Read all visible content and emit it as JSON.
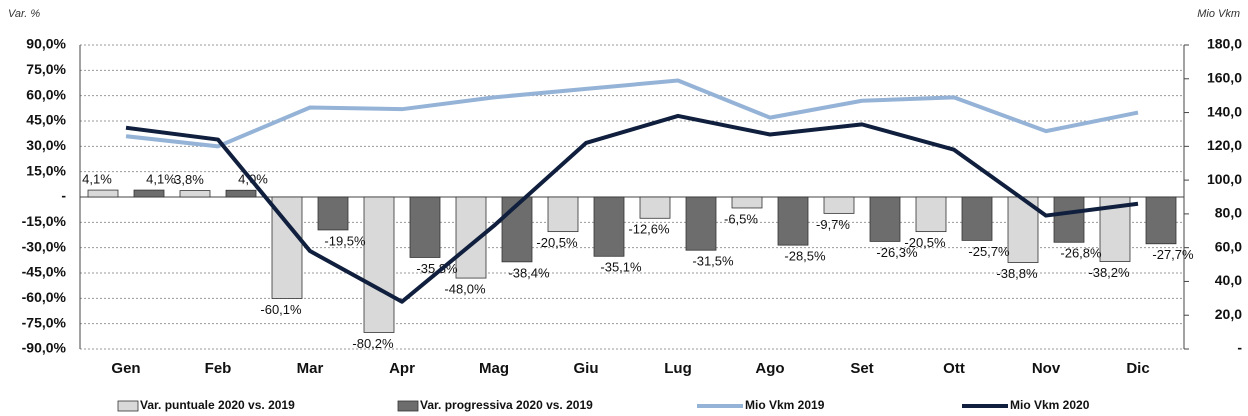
{
  "chart_data": {
    "type": "bar",
    "y_label": "Var. %",
    "y2_label": "Mio Vkm",
    "categories": [
      "Gen",
      "Feb",
      "Mar",
      "Apr",
      "Mag",
      "Giu",
      "Lug",
      "Ago",
      "Set",
      "Ott",
      "Nov",
      "Dic"
    ],
    "ylim": [
      -90,
      90
    ],
    "yticks": [
      {
        "value": 90,
        "label": "90,0%"
      },
      {
        "value": 75,
        "label": "75,0%"
      },
      {
        "value": 60,
        "label": "60,0%"
      },
      {
        "value": 45,
        "label": "45,0%"
      },
      {
        "value": 30,
        "label": "30,0%"
      },
      {
        "value": 15,
        "label": "15,0%"
      },
      {
        "value": 0,
        "label": "-"
      },
      {
        "value": -15,
        "label": "-15,0%"
      },
      {
        "value": -30,
        "label": "-30,0%"
      },
      {
        "value": -45,
        "label": "-45,0%"
      },
      {
        "value": -60,
        "label": "-60,0%"
      },
      {
        "value": -75,
        "label": "-75,0%"
      },
      {
        "value": -90,
        "label": "-90,0%"
      }
    ],
    "y2lim": [
      0,
      180
    ],
    "y2ticks": [
      {
        "value": 180,
        "label": "180,0"
      },
      {
        "value": 160,
        "label": "160,0"
      },
      {
        "value": 140,
        "label": "140,0"
      },
      {
        "value": 120,
        "label": "120,0"
      },
      {
        "value": 100,
        "label": "100,0"
      },
      {
        "value": 80,
        "label": "80,0"
      },
      {
        "value": 60,
        "label": "60,0"
      },
      {
        "value": 40,
        "label": "40,0"
      },
      {
        "value": 20,
        "label": "20,0"
      },
      {
        "value": 0,
        "label": "-"
      }
    ],
    "grid": true,
    "series": [
      {
        "name": "Var. puntuale 2020 vs. 2019",
        "type": "bar",
        "color": "#d9d9d9",
        "values": [
          4.1,
          3.8,
          -60.1,
          -80.2,
          -48.0,
          -20.5,
          -12.6,
          -6.5,
          -9.7,
          -20.5,
          -38.8,
          -38.2
        ],
        "value_labels": [
          "4,1%",
          "3,8%",
          "-60,1%",
          "-80,2%",
          "-48,0%",
          "-20,5%",
          "-12,6%",
          "-6,5%",
          "-9,7%",
          "-20,5%",
          "-38,8%",
          "-38,2%"
        ]
      },
      {
        "name": "Var. progressiva 2020 vs. 2019",
        "type": "bar",
        "color": "#6d6d6d",
        "values": [
          4.1,
          4.0,
          -19.5,
          -35.8,
          -38.4,
          -35.1,
          -31.5,
          -28.5,
          -26.3,
          -25.7,
          -26.8,
          -27.7
        ],
        "value_labels": [
          "4,1%",
          "4,0%",
          "-19,5%",
          "-35,8%",
          "-38,4%",
          "-35,1%",
          "-31,5%",
          "-28,5%",
          "-26,3%",
          "-25,7%",
          "-26,8%",
          "-27,7%"
        ]
      },
      {
        "name": "Mio Vkm 2019",
        "type": "line",
        "axis": "y2",
        "color": "#95b3d7",
        "values": [
          126,
          120,
          143,
          142,
          149,
          154,
          159,
          137,
          147,
          149,
          129,
          140
        ]
      },
      {
        "name": "Mio Vkm 2020",
        "type": "line",
        "axis": "y2",
        "color": "#0f1f3d",
        "values": [
          131,
          124,
          58,
          28,
          73,
          122,
          138,
          127,
          133,
          118,
          79,
          86
        ]
      }
    ]
  }
}
